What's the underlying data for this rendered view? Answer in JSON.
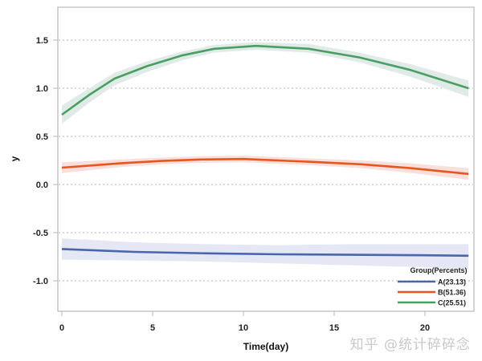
{
  "chart_data": {
    "type": "line",
    "title": "",
    "xlabel": "Time(day)",
    "ylabel": "y",
    "xlim": [
      -0.4,
      22.7
    ],
    "ylim": [
      -1.32,
      1.84
    ],
    "xticks": [
      0,
      5,
      10,
      15,
      20
    ],
    "xtick_labels": [
      "0",
      "5",
      "10",
      "15",
      "20"
    ],
    "yticks": [
      -1.0,
      -0.5,
      0.0,
      0.5,
      1.0,
      1.5
    ],
    "ytick_labels": [
      "-1.0",
      "-0.5",
      "0.0",
      "0.5",
      "1.0",
      "1.5"
    ],
    "grid": {
      "horizontal": true,
      "style": "dotted",
      "color": "#b5b5b5"
    },
    "legend": {
      "title": "Group(Percents)",
      "position": "lower right, inside"
    },
    "series": [
      {
        "name": "A(23.13)",
        "color": "#4766ab",
        "band_color": "#e2e5f3",
        "x": [
          0,
          4,
          8,
          12,
          16,
          20,
          22.4
        ],
        "values": [
          -0.67,
          -0.7,
          -0.715,
          -0.725,
          -0.73,
          -0.735,
          -0.74
        ],
        "lower": [
          -0.78,
          -0.79,
          -0.8,
          -0.82,
          -0.84,
          -0.86,
          -0.875
        ],
        "upper": [
          -0.56,
          -0.6,
          -0.62,
          -0.63,
          -0.62,
          -0.62,
          -0.62
        ]
      },
      {
        "name": "B(51.36)",
        "color": "#e8561e",
        "band_color": "#f7dcd7",
        "x": [
          0,
          3.2,
          5.5,
          7.7,
          10,
          13.8,
          16.5,
          19.2,
          22.4
        ],
        "values": [
          0.175,
          0.22,
          0.245,
          0.26,
          0.265,
          0.235,
          0.21,
          0.17,
          0.11
        ],
        "lower": [
          0.12,
          0.18,
          0.21,
          0.225,
          0.23,
          0.2,
          0.17,
          0.12,
          0.05
        ],
        "upper": [
          0.23,
          0.26,
          0.28,
          0.295,
          0.3,
          0.27,
          0.25,
          0.22,
          0.17
        ]
      },
      {
        "name": "C(25.51)",
        "color": "#4a9e62",
        "band_color": "#dde9e6",
        "x": [
          0,
          1.5,
          2.9,
          4.7,
          6.6,
          8.4,
          10.7,
          13.6,
          16.4,
          19.2,
          22.4
        ],
        "values": [
          0.725,
          0.93,
          1.1,
          1.23,
          1.34,
          1.41,
          1.44,
          1.41,
          1.32,
          1.19,
          1.0
        ],
        "lower": [
          0.63,
          0.85,
          1.03,
          1.17,
          1.29,
          1.37,
          1.4,
          1.37,
          1.27,
          1.12,
          0.91
        ],
        "upper": [
          0.82,
          1.0,
          1.16,
          1.28,
          1.38,
          1.45,
          1.48,
          1.46,
          1.37,
          1.25,
          1.08
        ]
      }
    ]
  },
  "watermark": "知乎 @统计碎碎念"
}
